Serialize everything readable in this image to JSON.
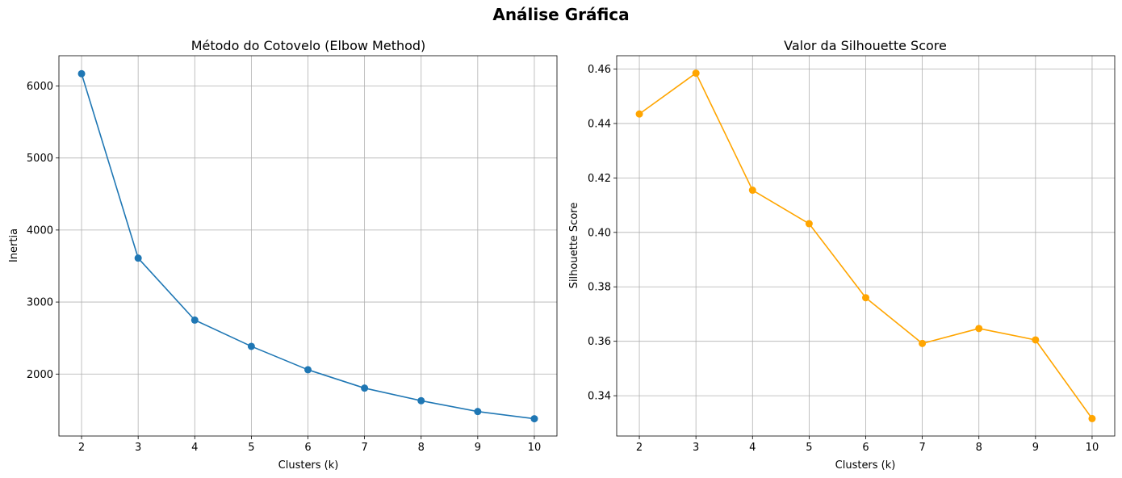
{
  "suptitle": "Análise Gráfica",
  "chart_data": [
    {
      "type": "line",
      "title": "Método do Cotovelo (Elbow Method)",
      "xlabel": "Clusters (k)",
      "ylabel": "Inertia",
      "x": [
        2,
        3,
        4,
        5,
        6,
        7,
        8,
        9,
        10
      ],
      "series": [
        {
          "values": [
            6170,
            3610,
            2750,
            2385,
            2060,
            1805,
            1630,
            1480,
            1380
          ],
          "color": "#1f77b4"
        }
      ],
      "xlim": [
        1.6,
        10.4
      ],
      "ylim": [
        1140,
        6420
      ],
      "xticks": [
        2,
        3,
        4,
        5,
        6,
        7,
        8,
        9,
        10
      ],
      "yticks": [
        2000,
        3000,
        4000,
        5000,
        6000
      ],
      "yticklabels": [
        "2000",
        "3000",
        "4000",
        "5000",
        "6000"
      ],
      "grid": true,
      "marker": "circle"
    },
    {
      "type": "line",
      "title": "Valor da Silhouette Score",
      "xlabel": "Clusters (k)",
      "ylabel": "Silhouette Score",
      "x": [
        2,
        3,
        4,
        5,
        6,
        7,
        8,
        9,
        10
      ],
      "series": [
        {
          "values": [
            0.4435,
            0.4585,
            0.4155,
            0.4032,
            0.376,
            0.3592,
            0.3647,
            0.3605,
            0.3316
          ],
          "color": "#ffa500"
        }
      ],
      "xlim": [
        1.6,
        10.4
      ],
      "ylim": [
        0.3252,
        0.4649
      ],
      "xticks": [
        2,
        3,
        4,
        5,
        6,
        7,
        8,
        9,
        10
      ],
      "yticks": [
        0.34,
        0.36,
        0.38,
        0.4,
        0.42,
        0.44,
        0.46
      ],
      "yticklabels": [
        "0.34",
        "0.36",
        "0.38",
        "0.40",
        "0.42",
        "0.44",
        "0.46"
      ],
      "grid": true,
      "marker": "circle"
    }
  ]
}
